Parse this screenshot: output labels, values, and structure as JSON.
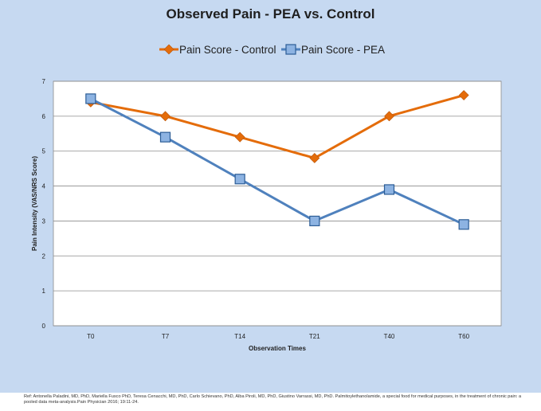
{
  "chart_data": {
    "type": "line",
    "title": "Observed Pain - PEA vs. Control",
    "xlabel": "Observation Times",
    "ylabel": "Pain Intensity (VAS/NRS Score)",
    "categories": [
      "T0",
      "T7",
      "T14",
      "T21",
      "T40",
      "T60"
    ],
    "ylim": [
      0,
      7
    ],
    "yticks": [
      "0",
      "1",
      "2",
      "3",
      "4",
      "5",
      "6",
      "7"
    ],
    "grid": true,
    "legend_position": "top",
    "series": [
      {
        "name": "Pain Score - Control",
        "values": [
          6.4,
          6.0,
          5.4,
          4.8,
          6.0,
          6.6
        ],
        "color": "#e46c0a",
        "marker": "diamond"
      },
      {
        "name": "Pain Score - PEA",
        "values": [
          6.5,
          5.4,
          4.2,
          3.0,
          3.9,
          2.9
        ],
        "color": "#4f81bd",
        "marker": "square"
      }
    ]
  },
  "reference": "Ref: Antonella Paladini, MD, PhD, Mariella Fusco PhD, Teresa Cenacchi, MD, PhD, Carlo Schievano, PhD, Alba Piroli, MD, PhD, Giustino Varrassi, MD, PhD. Palmitoylethanolamide, a special food for medical purposes, in the treatment of chronic pain: a pooled data meta-analysis.Pain Physician 2016; 19:11-24.",
  "colors": {
    "background": "#c6d9f1",
    "plot_area": "#ffffff",
    "gridline": "#8c8c8c"
  }
}
